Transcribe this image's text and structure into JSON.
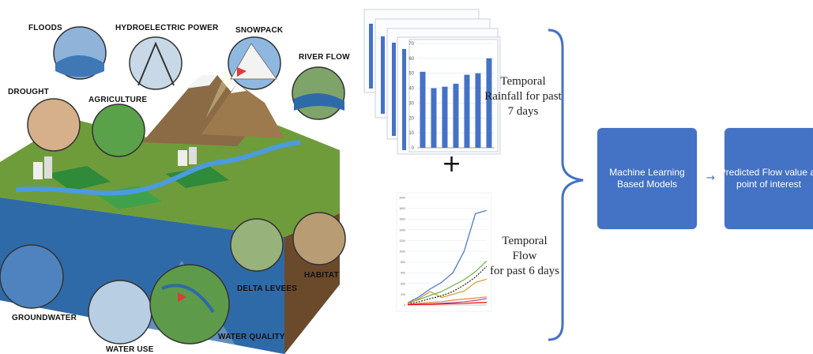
{
  "illustration": {
    "labels": {
      "floods": "FLOODS",
      "hydro": "HYDROELECTRIC POWER",
      "snowpack": "SNOWPACK",
      "river_flow": "RIVER FLOW",
      "drought": "DROUGHT",
      "agriculture": "AGRICULTURE",
      "habitat": "HABITAT",
      "delta_levees": "DELTA LEVEES",
      "groundwater": "GROUNDWATER",
      "water_use": "WATER USE",
      "water_quality": "WATER QUALITY"
    }
  },
  "inputs": {
    "rainfall_label": "Temporal Rainfall for past 7 days",
    "rainfall_label_lines": [
      "Temporal",
      "Rainfall for past",
      "7 days"
    ],
    "flow_label_lines": [
      "Temporal Flow",
      "for past 6 days"
    ],
    "plus": "+"
  },
  "pipeline": {
    "model_box": "Machine Learning Based Models",
    "model_box_lines": [
      "Machine Learning",
      "Based Models"
    ],
    "output_box_lines": [
      "Predicted Flow value at",
      "point of interest"
    ],
    "arrow": "→"
  },
  "colors": {
    "accent": "#4472c4",
    "brace": "#4472c4",
    "bar": "#4472c4"
  },
  "chart_data": [
    {
      "type": "bar",
      "title": "",
      "xlabel": "",
      "ylabel": "",
      "categories": [
        "1",
        "2",
        "3",
        "4",
        "5",
        "6",
        "7"
      ],
      "values": [
        51,
        40,
        41,
        43,
        49,
        50,
        60
      ],
      "ylim": [
        0,
        70
      ],
      "yticks": [
        0,
        10,
        20,
        30,
        40,
        50,
        60,
        70
      ],
      "grid": true
    },
    {
      "type": "line",
      "title": "",
      "xlabel": "",
      "ylabel": "",
      "x": [
        1,
        2,
        3,
        4,
        5,
        6,
        7,
        8
      ],
      "ylim": [
        0,
        2000
      ],
      "yticks": [
        0,
        200,
        400,
        600,
        800,
        1000,
        1200,
        1400,
        1600,
        1800,
        2000
      ],
      "series": [
        {
          "color": "#4472c4",
          "values": [
            40,
            150,
            300,
            420,
            600,
            1000,
            1700,
            1760
          ]
        },
        {
          "color": "#70ad47",
          "values": [
            40,
            100,
            180,
            250,
            360,
            470,
            620,
            820
          ]
        },
        {
          "color": "#222222",
          "values": [
            20,
            60,
            120,
            170,
            250,
            370,
            520,
            720
          ]
        },
        {
          "color": "#c9a227",
          "values": [
            20,
            120,
            250,
            140,
            200,
            260,
            420,
            480
          ]
        },
        {
          "color": "#ed7d31",
          "values": [
            10,
            30,
            50,
            60,
            90,
            110,
            130,
            150
          ]
        },
        {
          "color": "#a5479a",
          "values": [
            5,
            15,
            20,
            30,
            45,
            60,
            85,
            120
          ]
        },
        {
          "color": "#ff0000",
          "values": [
            5,
            10,
            15,
            20,
            25,
            30,
            40,
            50
          ]
        }
      ],
      "grid": true
    }
  ]
}
